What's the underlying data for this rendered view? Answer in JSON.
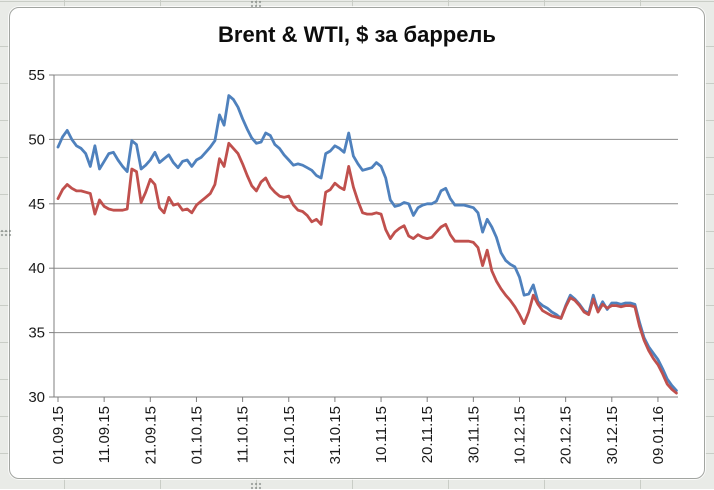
{
  "chart": {
    "accent_blue": "#4F81BD",
    "accent_red": "#C0504D",
    "grid_color": "#8c8c8c",
    "axis_color": "#7f7f7f",
    "label_color": "#1a1a1a"
  },
  "chart_data": {
    "type": "line",
    "title": "Brent & WTI, $ за баррель",
    "xlabel": "",
    "ylabel": "",
    "x_unit": "daily dates, dd.mm.yy, from 01.09.15 to 13.01.16",
    "x_tick_labels": [
      "01.09.15",
      "11.09.15",
      "21.09.15",
      "01.10.15",
      "11.10.15",
      "21.10.15",
      "31.10.15",
      "10.11.15",
      "20.11.15",
      "30.11.15",
      "10.12.15",
      "20.12.15",
      "30.12.15",
      "09.01.16"
    ],
    "x_tick_day_indices": [
      0,
      10,
      20,
      30,
      40,
      50,
      60,
      70,
      80,
      90,
      100,
      110,
      120,
      130
    ],
    "ylim": [
      30,
      55
    ],
    "y_ticks": [
      30,
      35,
      40,
      45,
      50,
      55
    ],
    "grid": "horizontal",
    "legend": "none",
    "series": [
      {
        "name": "Brent",
        "color": "#4F81BD",
        "values": [
          49.4,
          50.2,
          50.7,
          50.0,
          49.5,
          49.3,
          48.9,
          47.9,
          49.5,
          47.7,
          48.3,
          48.9,
          49.0,
          48.4,
          47.9,
          47.5,
          49.9,
          49.6,
          47.7,
          48.0,
          48.4,
          49.0,
          48.2,
          48.5,
          48.8,
          48.2,
          47.8,
          48.3,
          48.4,
          47.9,
          48.4,
          48.6,
          49.0,
          49.4,
          49.9,
          51.9,
          51.1,
          53.4,
          53.1,
          52.5,
          51.6,
          50.8,
          50.1,
          49.7,
          49.8,
          50.5,
          50.3,
          49.6,
          49.3,
          48.8,
          48.4,
          48.0,
          48.1,
          48.0,
          47.8,
          47.6,
          47.2,
          47.0,
          48.9,
          49.1,
          49.5,
          49.3,
          49.0,
          50.5,
          48.7,
          48.1,
          47.6,
          47.7,
          47.8,
          48.2,
          47.9,
          47.0,
          45.3,
          44.8,
          44.9,
          45.1,
          45.0,
          44.1,
          44.7,
          44.9,
          45.0,
          45.0,
          45.2,
          46.0,
          46.2,
          45.4,
          44.9,
          44.9,
          44.9,
          44.8,
          44.7,
          44.3,
          42.8,
          43.8,
          43.2,
          42.4,
          41.2,
          40.6,
          40.3,
          40.1,
          39.3,
          37.9,
          38.0,
          38.7,
          37.4,
          37.1,
          36.9,
          36.6,
          36.4,
          36.1,
          37.1,
          37.9,
          37.6,
          37.2,
          36.7,
          36.5,
          37.9,
          36.7,
          37.4,
          36.8,
          37.3,
          37.3,
          37.2,
          37.3,
          37.3,
          37.2,
          35.8,
          34.6,
          33.9,
          33.4,
          32.9,
          32.2,
          31.4,
          30.9,
          30.5
        ]
      },
      {
        "name": "WTI",
        "color": "#C0504D",
        "values": [
          45.4,
          46.1,
          46.5,
          46.2,
          46.0,
          46.0,
          45.9,
          45.8,
          44.2,
          45.3,
          44.8,
          44.6,
          44.5,
          44.5,
          44.5,
          44.6,
          47.7,
          47.5,
          45.1,
          45.9,
          46.9,
          46.5,
          44.7,
          44.3,
          45.5,
          44.9,
          45.0,
          44.5,
          44.6,
          44.3,
          44.9,
          45.2,
          45.5,
          45.8,
          46.5,
          48.5,
          47.9,
          49.7,
          49.3,
          48.9,
          48.1,
          47.2,
          46.4,
          46.0,
          46.7,
          47.0,
          46.3,
          45.9,
          45.6,
          45.5,
          45.6,
          44.9,
          44.5,
          44.4,
          44.1,
          43.6,
          43.8,
          43.4,
          45.9,
          46.1,
          46.6,
          46.3,
          46.1,
          47.9,
          46.3,
          45.2,
          44.3,
          44.2,
          44.2,
          44.3,
          44.2,
          43.0,
          42.3,
          42.8,
          43.1,
          43.3,
          42.5,
          42.3,
          42.6,
          42.4,
          42.3,
          42.4,
          42.8,
          43.2,
          43.4,
          42.6,
          42.1,
          42.1,
          42.1,
          42.1,
          42.0,
          41.6,
          40.2,
          41.4,
          39.8,
          39.0,
          38.4,
          37.9,
          37.5,
          37.0,
          36.4,
          35.7,
          36.6,
          37.9,
          37.2,
          36.7,
          36.5,
          36.3,
          36.2,
          36.1,
          37.0,
          37.7,
          37.5,
          37.1,
          36.6,
          36.4,
          37.6,
          36.6,
          37.2,
          36.9,
          37.1,
          37.1,
          37.0,
          37.1,
          37.1,
          37.0,
          35.5,
          34.4,
          33.6,
          33.0,
          32.5,
          31.8,
          31.0,
          30.6,
          30.3
        ]
      }
    ]
  }
}
